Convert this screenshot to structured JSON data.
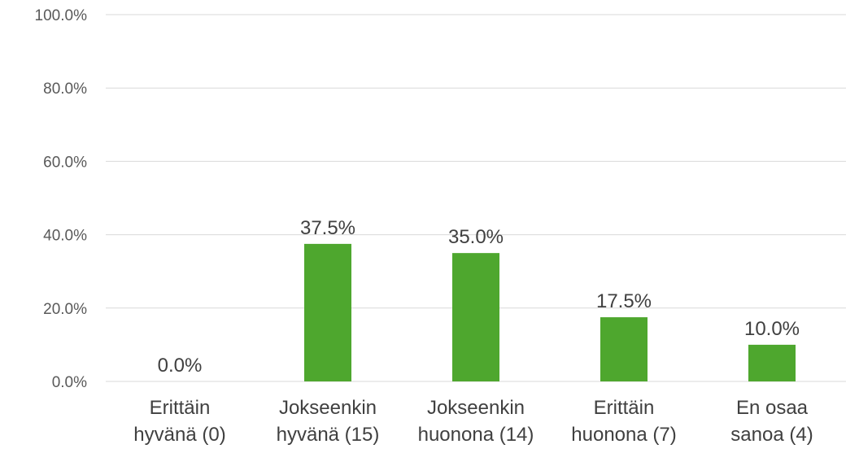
{
  "chart_data": {
    "type": "bar",
    "categories": [
      [
        "Erittäin",
        "hyvänä (0)"
      ],
      [
        "Jokseenkin",
        "hyvänä (15)"
      ],
      [
        "Jokseenkin",
        "huonona (14)"
      ],
      [
        "Erittäin",
        "huonona (7)"
      ],
      [
        "En osaa",
        "sanoa (4)"
      ]
    ],
    "values": [
      0.0,
      37.5,
      35.0,
      17.5,
      10.0
    ],
    "data_labels": [
      "0.0%",
      "37.5%",
      "35.0%",
      "17.5%",
      "10.0%"
    ],
    "ylim": [
      0,
      100
    ],
    "y_ticks": [
      0,
      20,
      40,
      60,
      80,
      100
    ],
    "y_tick_labels": [
      "0.0%",
      "20.0%",
      "40.0%",
      "60.0%",
      "80.0%",
      "100.0%"
    ],
    "bar_color": "#4ea72e",
    "gridline_color": "#d9d9d9",
    "grid": true,
    "legend": "none",
    "title": "",
    "xlabel": "",
    "ylabel": ""
  }
}
